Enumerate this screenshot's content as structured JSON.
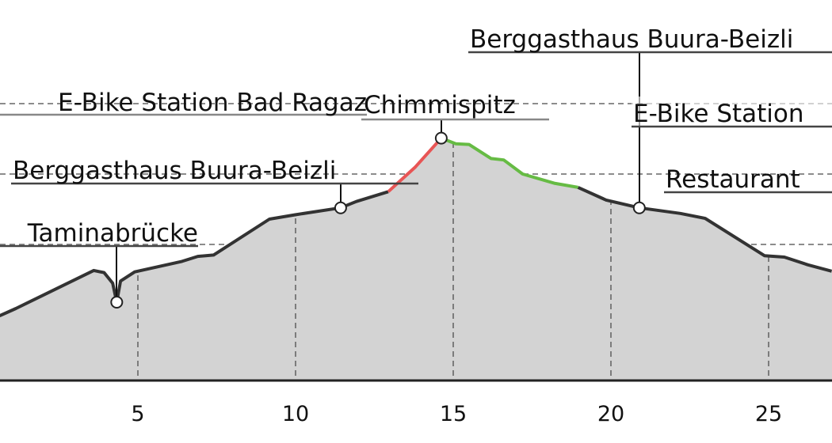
{
  "chart_data": {
    "type": "area",
    "title": "",
    "xlabel": "",
    "ylabel": "",
    "xlim": [
      0.6,
      27.0
    ],
    "x_ticks": [
      "5",
      "10",
      "15",
      "20",
      "25"
    ],
    "y_ticks_shown": false,
    "grid": true,
    "colors": {
      "fill": "#d3d3d3",
      "line": "#333333",
      "uphill_steep": "#e85555",
      "downhill": "#66bb44",
      "grid": "#666666"
    },
    "series": [
      {
        "segment": "default",
        "color": "#333333",
        "points": [
          [
            0.63,
            0.99
          ],
          [
            1.13,
            1.09
          ],
          [
            3.6,
            1.63
          ],
          [
            3.93,
            1.6
          ],
          [
            4.2,
            1.45
          ],
          [
            4.33,
            1.18
          ],
          [
            4.45,
            1.48
          ],
          [
            4.9,
            1.61
          ],
          [
            6.4,
            1.76
          ],
          [
            6.9,
            1.83
          ],
          [
            7.4,
            1.85
          ],
          [
            9.17,
            2.36
          ],
          [
            9.97,
            2.42
          ],
          [
            11.43,
            2.52
          ],
          [
            11.93,
            2.61
          ],
          [
            12.94,
            2.75
          ]
        ]
      },
      {
        "segment": "red",
        "color": "#e85555",
        "points": [
          [
            12.94,
            2.75
          ],
          [
            13.8,
            3.1
          ],
          [
            14.62,
            3.51
          ]
        ]
      },
      {
        "segment": "green",
        "color": "#66bb44",
        "points": [
          [
            14.62,
            3.51
          ],
          [
            15.08,
            3.43
          ],
          [
            15.5,
            3.42
          ],
          [
            16.2,
            3.22
          ],
          [
            16.6,
            3.2
          ],
          [
            17.2,
            3.0
          ],
          [
            18.2,
            2.87
          ],
          [
            18.96,
            2.81
          ]
        ]
      },
      {
        "segment": "default",
        "color": "#333333",
        "points": [
          [
            18.96,
            2.81
          ],
          [
            19.85,
            2.63
          ],
          [
            20.9,
            2.52
          ],
          [
            22.2,
            2.44
          ],
          [
            22.99,
            2.37
          ],
          [
            24.87,
            1.84
          ],
          [
            25.5,
            1.82
          ],
          [
            26.25,
            1.71
          ],
          [
            27.0,
            1.62
          ]
        ]
      }
    ],
    "annotations": [
      {
        "label": "Taminabrücke",
        "km": 4.33,
        "elev": 1.18,
        "marker": true
      },
      {
        "label": "Berggasthaus Buura-Beizli",
        "km": 11.43,
        "elev": 2.52,
        "marker": true
      },
      {
        "label": "E-Bike Station Bad Ragaz",
        "km": 0.6,
        "elev": 0.99,
        "marker": false
      },
      {
        "label": "Chimmispitz",
        "km": 14.62,
        "elev": 3.51,
        "marker": true
      },
      {
        "label": "Berggasthaus Buura-Beizli",
        "km": 20.9,
        "elev": 2.52,
        "marker": true
      },
      {
        "label": "E-Bike Station",
        "km": 27.0,
        "elev": 1.62,
        "marker": false
      },
      {
        "label": "Restaurant",
        "km": 27.0,
        "elev": 1.62,
        "marker": false
      }
    ]
  }
}
